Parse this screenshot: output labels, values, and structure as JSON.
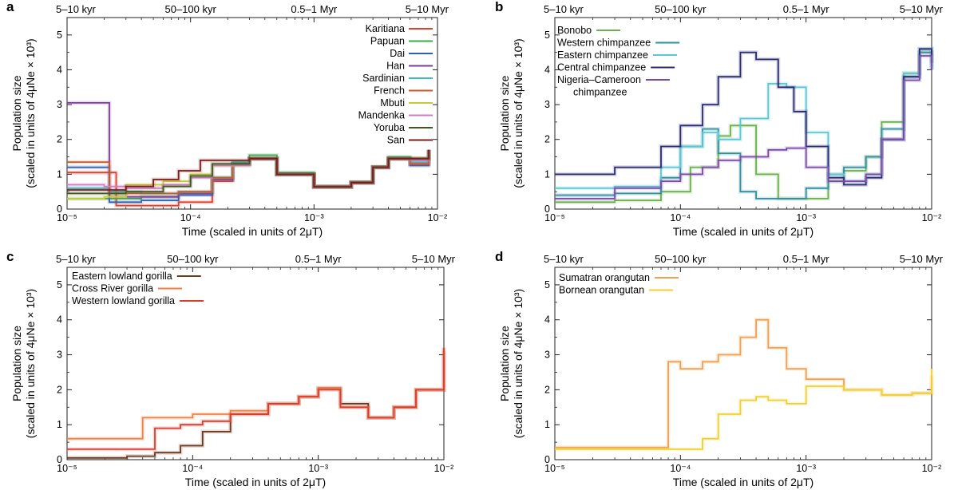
{
  "figure": {
    "panels": [
      {
        "letter": "a",
        "top_labels": [
          "5–10 kyr",
          "50–100 kyr",
          "0.5–1 Myr",
          "5–10 Myr"
        ],
        "ylabel_line1": "Population size",
        "ylabel_line2": "(scaled in units of 4μNe × 10³)",
        "xlabel": "Time (scaled in units of 2μT)"
      },
      {
        "letter": "b",
        "top_labels": [
          "5–10 kyr",
          "50–100 kyr",
          "0.5–1 Myr",
          "5–10 Myr"
        ],
        "ylabel_line1": "Population size",
        "ylabel_line2": "(scaled in units of 4μNe × 10³)",
        "xlabel": "Time (scaled in units of 2μT)"
      },
      {
        "letter": "c",
        "top_labels": [
          "5–10 kyr",
          "50–100 kyr",
          "0.5–1 Myr",
          "5–10 Myr"
        ],
        "ylabel_line1": "Population size",
        "ylabel_line2": "(scaled in units of 4μNe × 10³)",
        "xlabel": "Time (scaled in units of 2μT)"
      },
      {
        "letter": "d",
        "top_labels": [
          "5–10 kyr",
          "50–100 kyr",
          "0.5–1 Myr",
          "5–10 Myr"
        ],
        "ylabel_line1": "Population size",
        "ylabel_line2": "(scaled in units of 4μNe × 10³)",
        "xlabel": "Time (scaled in units of 2μT)"
      }
    ]
  },
  "chart_data": [
    {
      "panel": "a",
      "type": "line",
      "xscale": "log",
      "xlim": [
        1e-05,
        0.01
      ],
      "ylim": [
        0,
        5.5
      ],
      "x_ticks": [
        "10⁻⁵",
        "10⁻⁴",
        "10⁻³",
        "10⁻²"
      ],
      "y_ticks": [
        "0",
        "1",
        "2",
        "3",
        "4",
        "5"
      ],
      "legend_position": "top-right",
      "series": [
        {
          "name": "Karitiana",
          "color": "#e2402c",
          "x": [
            1e-05,
            2.5e-05,
            4e-05,
            8e-05,
            0.00015,
            0.00022,
            0.0003,
            0.0005,
            0.001,
            0.002,
            0.003,
            0.004,
            0.006,
            0.0085
          ],
          "y": [
            1.05,
            0.1,
            0.1,
            0.2,
            0.8,
            1.3,
            1.45,
            1.0,
            0.65,
            0.75,
            1.2,
            1.45,
            1.3,
            1.7
          ]
        },
        {
          "name": "Papuan",
          "color": "#38a84a",
          "x": [
            1e-05,
            2e-05,
            4e-05,
            8e-05,
            0.00015,
            0.00022,
            0.0003,
            0.0005,
            0.001,
            0.002,
            0.003,
            0.004,
            0.006,
            0.0085
          ],
          "y": [
            0.3,
            0.3,
            0.35,
            0.45,
            0.9,
            1.35,
            1.55,
            1.05,
            0.65,
            0.78,
            1.22,
            1.5,
            1.45,
            1.7
          ]
        },
        {
          "name": "Dai",
          "color": "#2f5fb0",
          "x": [
            1e-05,
            2.2e-05,
            4e-05,
            8e-05,
            0.00015,
            0.00022,
            0.0003,
            0.0005,
            0.001,
            0.002,
            0.003,
            0.004,
            0.006,
            0.0085
          ],
          "y": [
            1.2,
            0.2,
            0.25,
            0.4,
            0.85,
            1.3,
            1.45,
            1.0,
            0.64,
            0.76,
            1.2,
            1.45,
            1.25,
            1.7
          ]
        },
        {
          "name": "Han",
          "color": "#7b3e98",
          "x": [
            1e-05,
            2.2e-05,
            4e-05,
            8e-05,
            0.00015,
            0.00022,
            0.0003,
            0.0005,
            0.001,
            0.002,
            0.003,
            0.004,
            0.006,
            0.0085
          ],
          "y": [
            3.05,
            0.35,
            0.35,
            0.45,
            0.85,
            1.3,
            1.45,
            1.0,
            0.64,
            0.76,
            1.2,
            1.45,
            1.3,
            1.7
          ]
        },
        {
          "name": "Sardinian",
          "color": "#3bbcc4",
          "x": [
            1e-05,
            2.2e-05,
            4e-05,
            8e-05,
            0.00015,
            0.00022,
            0.0003,
            0.0005,
            0.001,
            0.002,
            0.003,
            0.004,
            0.006,
            0.0085
          ],
          "y": [
            0.6,
            0.5,
            0.45,
            0.5,
            0.9,
            1.35,
            1.45,
            1.0,
            0.64,
            0.76,
            1.2,
            1.45,
            1.35,
            1.7
          ]
        },
        {
          "name": "French",
          "color": "#c95a2a",
          "x": [
            1e-05,
            2.2e-05,
            4e-05,
            8e-05,
            0.00015,
            0.00022,
            0.0003,
            0.0005,
            0.001,
            0.002,
            0.003,
            0.004,
            0.006,
            0.0085
          ],
          "y": [
            1.35,
            0.45,
            0.45,
            0.5,
            0.9,
            1.3,
            1.45,
            1.0,
            0.64,
            0.76,
            1.2,
            1.45,
            1.3,
            1.7
          ]
        },
        {
          "name": "Mbuti",
          "color": "#c8c838",
          "x": [
            1e-05,
            2e-05,
            3e-05,
            6e-05,
            0.0001,
            0.00015,
            0.0003,
            0.0005,
            0.001,
            0.002,
            0.003,
            0.004,
            0.006,
            0.0085
          ],
          "y": [
            0.3,
            0.35,
            0.7,
            0.8,
            1.0,
            1.25,
            1.45,
            1.0,
            0.64,
            0.76,
            1.2,
            1.45,
            1.45,
            1.7
          ]
        },
        {
          "name": "Mandenka",
          "color": "#d07cc8",
          "x": [
            1e-05,
            2e-05,
            3e-05,
            6e-05,
            0.0001,
            0.00015,
            0.0003,
            0.0005,
            0.001,
            0.002,
            0.003,
            0.004,
            0.006,
            0.0085
          ],
          "y": [
            0.7,
            0.65,
            0.6,
            0.7,
            0.9,
            1.25,
            1.45,
            1.0,
            0.64,
            0.76,
            1.2,
            1.45,
            1.4,
            1.7
          ]
        },
        {
          "name": "Yoruba",
          "color": "#3c5a1e",
          "x": [
            1e-05,
            2e-05,
            3e-05,
            6e-05,
            0.0001,
            0.00015,
            0.0003,
            0.0005,
            0.001,
            0.002,
            0.003,
            0.004,
            0.006,
            0.0085
          ],
          "y": [
            0.45,
            0.45,
            0.5,
            0.65,
            0.95,
            1.3,
            1.45,
            1.0,
            0.64,
            0.76,
            1.2,
            1.45,
            1.45,
            1.7
          ]
        },
        {
          "name": "San",
          "color": "#7a1c1c",
          "x": [
            1e-05,
            2e-05,
            3e-05,
            5e-05,
            8e-05,
            0.00012,
            0.0003,
            0.0005,
            0.001,
            0.002,
            0.003,
            0.004,
            0.006,
            0.0085
          ],
          "y": [
            0.55,
            0.55,
            0.65,
            0.85,
            1.1,
            1.4,
            1.45,
            1.0,
            0.64,
            0.76,
            1.2,
            1.45,
            1.45,
            1.7
          ]
        }
      ]
    },
    {
      "panel": "b",
      "type": "line",
      "xscale": "log",
      "xlim": [
        1e-05,
        0.01
      ],
      "ylim": [
        0,
        5.5
      ],
      "x_ticks": [
        "10⁻⁵",
        "10⁻⁴",
        "10⁻³",
        "10⁻²"
      ],
      "y_ticks": [
        "0",
        "1",
        "2",
        "3",
        "4",
        "5"
      ],
      "legend_position": "top-left",
      "series": [
        {
          "name": "Bonobo",
          "color": "#6ab04c",
          "x": [
            1e-05,
            3e-05,
            7e-05,
            0.00012,
            0.0002,
            0.00025,
            0.0004,
            0.0006,
            0.0009,
            0.0015,
            0.002,
            0.003,
            0.004,
            0.006,
            0.008,
            0.01
          ],
          "y": [
            0.2,
            0.25,
            0.5,
            1.2,
            2.1,
            2.4,
            1.0,
            0.3,
            0.3,
            0.8,
            1.1,
            1.5,
            2.5,
            3.9,
            4.5,
            4.1
          ]
        },
        {
          "name": "Western chimpanzee",
          "color": "#2f8ea0",
          "x": [
            1e-05,
            3e-05,
            7e-05,
            0.0001,
            0.00015,
            0.0002,
            0.0003,
            0.0004,
            0.0006,
            0.001,
            0.0015,
            0.002,
            0.003,
            0.004,
            0.006,
            0.008,
            0.01
          ],
          "y": [
            0.4,
            0.45,
            0.9,
            1.8,
            2.3,
            1.6,
            0.5,
            0.3,
            0.3,
            0.6,
            1.0,
            1.2,
            1.5,
            2.3,
            3.8,
            4.5,
            4.0
          ]
        },
        {
          "name": "Eastern chimpanzee",
          "color": "#5bc6d6",
          "x": [
            1e-05,
            3e-05,
            7e-05,
            0.0001,
            0.00015,
            0.0002,
            0.0003,
            0.0005,
            0.0007,
            0.001,
            0.0015,
            0.002,
            0.003,
            0.004,
            0.006,
            0.008,
            0.01
          ],
          "y": [
            0.6,
            0.65,
            1.2,
            1.8,
            2.2,
            2.0,
            2.6,
            3.6,
            3.5,
            2.2,
            1.0,
            0.8,
            1.0,
            2.0,
            3.9,
            4.6,
            4.0
          ]
        },
        {
          "name": "Central chimpanzee",
          "color": "#2a2a72",
          "x": [
            1e-05,
            3e-05,
            7e-05,
            0.0001,
            0.00015,
            0.0002,
            0.0003,
            0.0004,
            0.0006,
            0.0008,
            0.001,
            0.0015,
            0.002,
            0.003,
            0.004,
            0.006,
            0.008,
            0.01
          ],
          "y": [
            1.0,
            1.2,
            1.8,
            2.4,
            3.0,
            3.8,
            4.5,
            4.3,
            3.5,
            2.8,
            1.8,
            0.9,
            0.7,
            0.9,
            2.0,
            3.8,
            4.6,
            4.2
          ]
        },
        {
          "name": "Nigeria–Cameroon chimpanzee",
          "color": "#7b4aa8",
          "x": [
            1e-05,
            3e-05,
            7e-05,
            0.0001,
            0.00015,
            0.0002,
            0.0003,
            0.0005,
            0.0007,
            0.001,
            0.0015,
            0.002,
            0.003,
            0.004,
            0.006,
            0.008,
            0.01
          ],
          "y": [
            0.3,
            0.6,
            0.8,
            1.0,
            1.2,
            1.4,
            1.5,
            1.7,
            1.75,
            1.2,
            0.8,
            0.8,
            1.0,
            2.0,
            3.7,
            4.4,
            4.0
          ]
        }
      ]
    },
    {
      "panel": "c",
      "type": "line",
      "xscale": "log",
      "xlim": [
        1e-05,
        0.01
      ],
      "ylim": [
        0,
        5.5
      ],
      "x_ticks": [
        "10⁻⁵",
        "10⁻⁴",
        "10⁻³",
        "10⁻²"
      ],
      "y_ticks": [
        "0",
        "1",
        "2",
        "3",
        "4",
        "5"
      ],
      "legend_position": "top-left",
      "series": [
        {
          "name": "Eastern lowland gorilla",
          "color": "#6b3a1e",
          "x": [
            1e-05,
            3e-05,
            5e-05,
            8e-05,
            0.00012,
            0.0002,
            0.0004,
            0.0007,
            0.001,
            0.0015,
            0.0025,
            0.004,
            0.006,
            0.01
          ],
          "y": [
            0.05,
            0.1,
            0.2,
            0.4,
            0.8,
            1.3,
            1.6,
            1.8,
            2.05,
            1.6,
            1.2,
            1.5,
            2.0,
            3.1
          ]
        },
        {
          "name": "Cross River gorilla",
          "color": "#f08040",
          "x": [
            1e-05,
            3e-05,
            4e-05,
            7e-05,
            0.0001,
            0.0002,
            0.0004,
            0.0007,
            0.001,
            0.0015,
            0.0025,
            0.004,
            0.006,
            0.01
          ],
          "y": [
            0.6,
            0.6,
            1.2,
            1.2,
            1.3,
            1.4,
            1.6,
            1.8,
            2.05,
            1.5,
            1.2,
            1.5,
            2.0,
            3.2
          ]
        },
        {
          "name": "Western lowland gorilla",
          "color": "#e03a2a",
          "x": [
            1e-05,
            3e-05,
            5e-05,
            8e-05,
            0.00012,
            0.0002,
            0.0004,
            0.0007,
            0.001,
            0.0015,
            0.0025,
            0.004,
            0.006,
            0.01
          ],
          "y": [
            0.3,
            0.3,
            0.9,
            1.0,
            1.1,
            1.3,
            1.6,
            1.8,
            2.0,
            1.5,
            1.2,
            1.5,
            2.0,
            3.2
          ]
        }
      ]
    },
    {
      "panel": "d",
      "type": "line",
      "xscale": "log",
      "xlim": [
        1e-05,
        0.01
      ],
      "ylim": [
        0,
        5.5
      ],
      "x_ticks": [
        "10⁻⁵",
        "10⁻⁴",
        "10⁻³",
        "10⁻²"
      ],
      "y_ticks": [
        "0",
        "1",
        "2",
        "3",
        "4",
        "5"
      ],
      "legend_position": "top-left",
      "series": [
        {
          "name": "Sumatran orangutan",
          "color": "#f0a050",
          "x": [
            1e-05,
            5e-05,
            8e-05,
            0.0001,
            0.00015,
            0.0002,
            0.0003,
            0.0004,
            0.0005,
            0.0007,
            0.001,
            0.002,
            0.004,
            0.007,
            0.01
          ],
          "y": [
            0.35,
            0.35,
            2.8,
            2.6,
            2.8,
            3.0,
            3.5,
            4.0,
            3.2,
            2.6,
            2.3,
            2.0,
            1.85,
            1.9,
            2.4
          ]
        },
        {
          "name": "Bornean orangutan",
          "color": "#f0d030",
          "x": [
            1e-05,
            5e-05,
            0.0001,
            0.00015,
            0.0002,
            0.0003,
            0.0004,
            0.0005,
            0.0007,
            0.001,
            0.002,
            0.004,
            0.007,
            0.01
          ],
          "y": [
            0.3,
            0.3,
            0.3,
            0.6,
            1.3,
            1.7,
            1.8,
            1.7,
            1.6,
            2.1,
            2.0,
            1.85,
            1.9,
            2.6
          ]
        }
      ]
    }
  ]
}
